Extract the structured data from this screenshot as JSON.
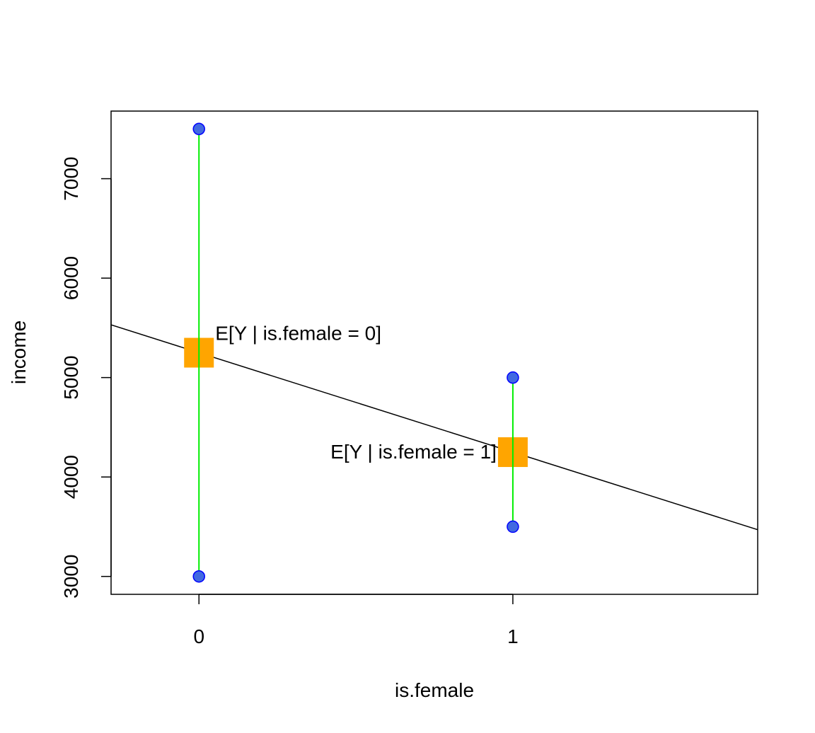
{
  "chart_data": {
    "type": "scatter",
    "xlabel": "is.female",
    "ylabel": "income",
    "xlim": [
      -0.28,
      1.78
    ],
    "ylim": [
      2820,
      7680
    ],
    "x_ticks": [
      0,
      1
    ],
    "y_ticks": [
      3000,
      4000,
      5000,
      6000,
      7000
    ],
    "points": [
      {
        "x": 0,
        "y": 7500
      },
      {
        "x": 0,
        "y": 3000
      },
      {
        "x": 1,
        "y": 5000
      },
      {
        "x": 1,
        "y": 3500
      }
    ],
    "ranges": [
      {
        "x": 0,
        "y0": 3000,
        "y1": 7500
      },
      {
        "x": 1,
        "y0": 3500,
        "y1": 5000
      }
    ],
    "means": [
      {
        "x": 0,
        "y": 5250,
        "label": "E[Y | is.female = 0]",
        "label_side": "right"
      },
      {
        "x": 1,
        "y": 4250,
        "label": "E[Y | is.female = 1]",
        "label_side": "left"
      }
    ],
    "fit_line": {
      "intercept": 5250,
      "slope": -1000
    },
    "colors": {
      "point_fill": "#4169E1",
      "point_stroke": "#0000FF",
      "range_line": "#00EE00",
      "mean_marker": "#FFA500",
      "fit_line": "#000000"
    }
  }
}
